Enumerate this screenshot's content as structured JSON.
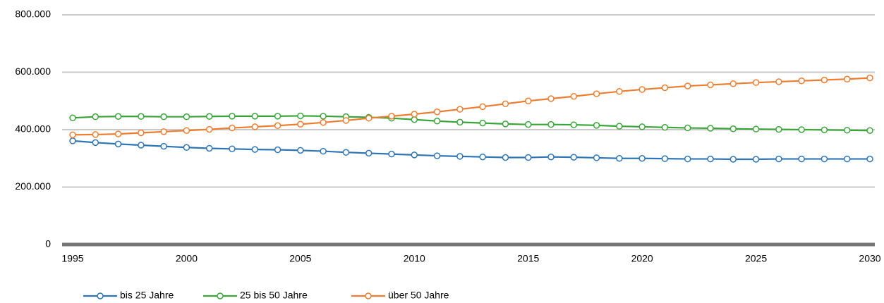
{
  "chart_data": {
    "type": "line",
    "x": [
      1995,
      1996,
      1997,
      1998,
      1999,
      2000,
      2001,
      2002,
      2003,
      2004,
      2005,
      2006,
      2007,
      2008,
      2009,
      2010,
      2011,
      2012,
      2013,
      2014,
      2015,
      2016,
      2017,
      2018,
      2019,
      2020,
      2021,
      2022,
      2023,
      2024,
      2025,
      2026,
      2027,
      2028,
      2029,
      2030
    ],
    "series": [
      {
        "name": "bis 25 Jahre",
        "color": "#2e75b6",
        "values": [
          361000,
          355000,
          350000,
          346000,
          342000,
          338000,
          335000,
          333000,
          331000,
          330000,
          328000,
          325000,
          321000,
          318000,
          315000,
          312000,
          309000,
          307000,
          305000,
          303000,
          303000,
          305000,
          304000,
          302000,
          300000,
          300000,
          299000,
          298000,
          298000,
          297000,
          297000,
          298000,
          298000,
          298000,
          298000,
          298000
        ]
      },
      {
        "name": "25 bis 50 Jahre",
        "color": "#3aa63a",
        "values": [
          441000,
          445000,
          446000,
          446000,
          445000,
          445000,
          446000,
          447000,
          447000,
          447000,
          448000,
          447000,
          445000,
          443000,
          440000,
          435000,
          430000,
          426000,
          423000,
          420000,
          418000,
          418000,
          417000,
          415000,
          412000,
          410000,
          408000,
          406000,
          405000,
          403000,
          402000,
          401000,
          400000,
          399000,
          398000,
          397000
        ]
      },
      {
        "name": "über 50 Jahre",
        "color": "#ed7d31",
        "values": [
          382000,
          383000,
          385000,
          389000,
          393000,
          397000,
          401000,
          406000,
          410000,
          414000,
          419000,
          425000,
          432000,
          440000,
          447000,
          454000,
          462000,
          471000,
          480000,
          490000,
          500000,
          508000,
          516000,
          525000,
          533000,
          540000,
          546000,
          552000,
          556000,
          560000,
          564000,
          567000,
          570000,
          573000,
          576000,
          580000
        ]
      }
    ],
    "xlim": [
      1995,
      2030
    ],
    "xticks": [
      1995,
      2000,
      2005,
      2010,
      2015,
      2020,
      2025,
      2030
    ],
    "ylim": [
      0,
      800000
    ],
    "yticks": [
      0,
      {
        "value": 200000,
        "label": "200.000"
      },
      {
        "value": 400000,
        "label": "400.000"
      },
      {
        "value": 600000,
        "label": "600.000"
      },
      {
        "value": 800000,
        "label": "800.000"
      }
    ],
    "grid": true,
    "legend": "bottom-left"
  }
}
